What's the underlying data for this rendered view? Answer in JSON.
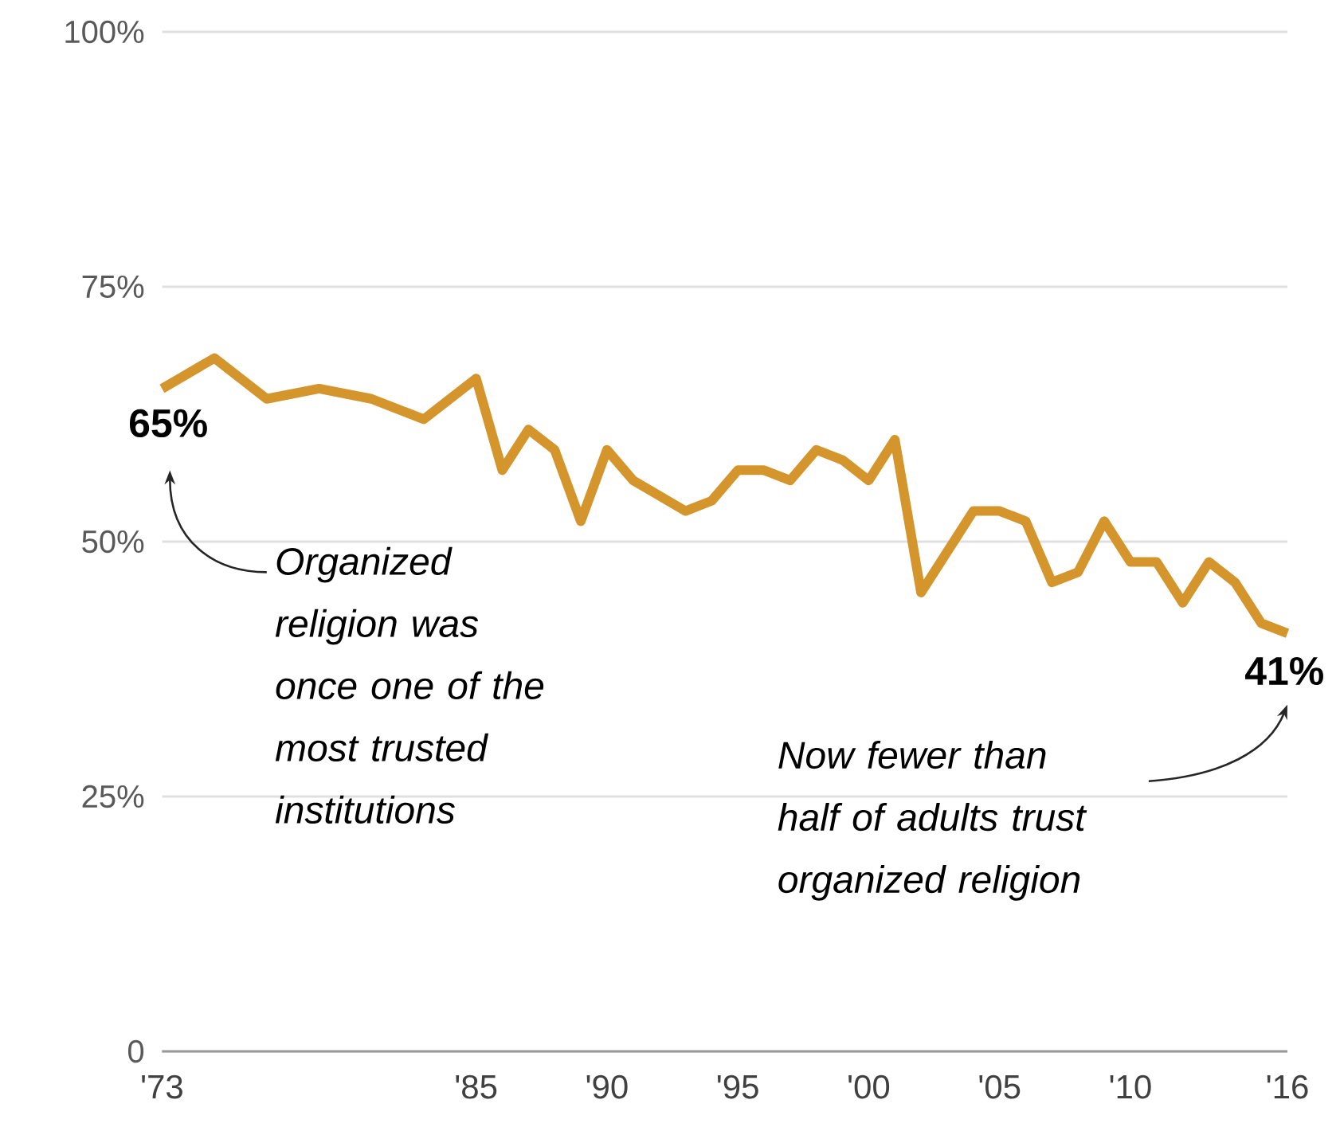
{
  "chart_data": {
    "type": "line",
    "x": [
      1973,
      1975,
      1977,
      1979,
      1981,
      1983,
      1984,
      1985,
      1986,
      1987,
      1988,
      1989,
      1990,
      1991,
      1993,
      1994,
      1995,
      1996,
      1997,
      1998,
      1999,
      2000,
      2001,
      2002,
      2003,
      2004,
      2005,
      2006,
      2007,
      2008,
      2009,
      2010,
      2011,
      2012,
      2013,
      2014,
      2015,
      2016
    ],
    "series": [
      {
        "color": "#d4962c",
        "values": [
          65,
          68,
          64,
          65,
          64,
          62,
          64,
          66,
          57,
          61,
          59,
          52,
          59,
          56,
          53,
          54,
          57,
          57,
          56,
          59,
          58,
          56,
          60,
          45,
          49,
          53,
          53,
          52,
          46,
          47,
          52,
          48,
          48,
          44,
          48,
          46,
          42,
          41
        ]
      }
    ],
    "xlim": [
      1973,
      2016
    ],
    "xticks": [
      {
        "value": 1973,
        "label": "'73"
      },
      {
        "value": 1985,
        "label": "'85"
      },
      {
        "value": 1990,
        "label": "'90"
      },
      {
        "value": 1995,
        "label": "'95"
      },
      {
        "value": 2000,
        "label": "'00"
      },
      {
        "value": 2005,
        "label": "'05"
      },
      {
        "value": 2010,
        "label": "'10"
      },
      {
        "value": 2016,
        "label": "'16"
      }
    ],
    "ylim": [
      0,
      100
    ],
    "yticks": [
      {
        "value": 0,
        "label": "0"
      },
      {
        "value": 25,
        "label": "25%"
      },
      {
        "value": 50,
        "label": "50%"
      },
      {
        "value": 75,
        "label": "75%"
      },
      {
        "value": 100,
        "label": "100%"
      }
    ],
    "grid": "y",
    "marker": "none",
    "line_style": "solid",
    "annotations": [
      {
        "text": "65%",
        "x": 1973,
        "y": 65
      },
      {
        "text": "41%",
        "x": 2016,
        "y": 41
      },
      "Organized religion was once one of the most trusted institutions",
      "Now fewer than half of adults trust organized religion"
    ]
  }
}
